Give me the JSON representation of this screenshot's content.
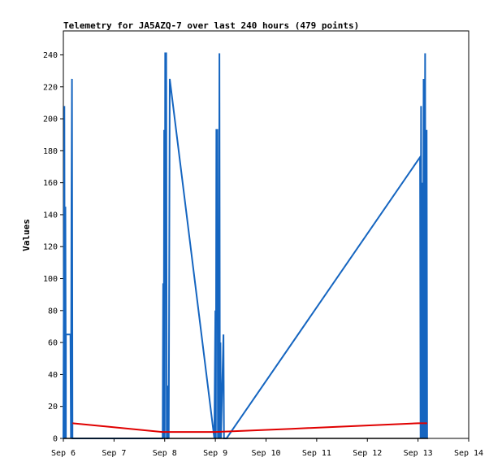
{
  "chart_data": {
    "type": "line",
    "title": "Telemetry for JA5AZQ-7 over last 240 hours (479 points)",
    "xlabel": "",
    "ylabel": "Values",
    "xlim": [
      "Sep 6",
      "Sep 14"
    ],
    "ylim": [
      0,
      255
    ],
    "x_ticks": [
      "Sep 6",
      "Sep 7",
      "Sep 8",
      "Sep 9",
      "Sep 10",
      "Sep 11",
      "Sep 12",
      "Sep 13",
      "Sep 14"
    ],
    "y_ticks": [
      0,
      20,
      40,
      60,
      80,
      100,
      120,
      140,
      160,
      180,
      200,
      220,
      240
    ],
    "grid": false,
    "legend": "none",
    "series": [
      {
        "color": "#1565c0",
        "points": [
          [
            0.0,
            0
          ],
          [
            0.02,
            208
          ],
          [
            0.03,
            0
          ],
          [
            0.04,
            145
          ],
          [
            0.05,
            0
          ],
          [
            0.05,
            65
          ],
          [
            0.14,
            65
          ],
          [
            0.15,
            0
          ],
          [
            0.16,
            145
          ],
          [
            0.17,
            225
          ],
          [
            0.18,
            0
          ],
          [
            1.96,
            0
          ],
          [
            1.97,
            97
          ],
          [
            1.98,
            0
          ],
          [
            1.99,
            193
          ],
          [
            2.0,
            0
          ],
          [
            2.01,
            241
          ],
          [
            2.03,
            241
          ],
          [
            2.04,
            0
          ],
          [
            2.06,
            0
          ],
          [
            2.07,
            33
          ],
          [
            2.08,
            0
          ],
          [
            2.1,
            225
          ],
          [
            2.98,
            0
          ],
          [
            3.0,
            80
          ],
          [
            3.01,
            0
          ],
          [
            3.02,
            193
          ],
          [
            3.04,
            193
          ],
          [
            3.05,
            0
          ],
          [
            3.06,
            80
          ],
          [
            3.07,
            0
          ],
          [
            3.08,
            241
          ],
          [
            3.09,
            0
          ],
          [
            3.1,
            60
          ],
          [
            3.11,
            0
          ],
          [
            3.16,
            65
          ],
          [
            3.17,
            0
          ],
          [
            3.22,
            0
          ],
          [
            7.04,
            176
          ],
          [
            7.05,
            0
          ],
          [
            7.06,
            208
          ],
          [
            7.07,
            0
          ],
          [
            7.08,
            160
          ],
          [
            7.1,
            0
          ],
          [
            7.11,
            225
          ],
          [
            7.12,
            0
          ],
          [
            7.14,
            241
          ],
          [
            7.15,
            0
          ],
          [
            7.17,
            193
          ],
          [
            7.18,
            0
          ]
        ]
      },
      {
        "color": "#e00000",
        "points": [
          [
            0.18,
            9.5
          ],
          [
            1.95,
            4
          ],
          [
            3.0,
            4
          ],
          [
            4.5,
            6
          ],
          [
            7.0,
            9.5
          ],
          [
            7.18,
            9.5
          ]
        ]
      },
      {
        "color": "#000000",
        "points": [
          [
            0.0,
            0
          ],
          [
            7.2,
            0
          ]
        ]
      }
    ]
  }
}
